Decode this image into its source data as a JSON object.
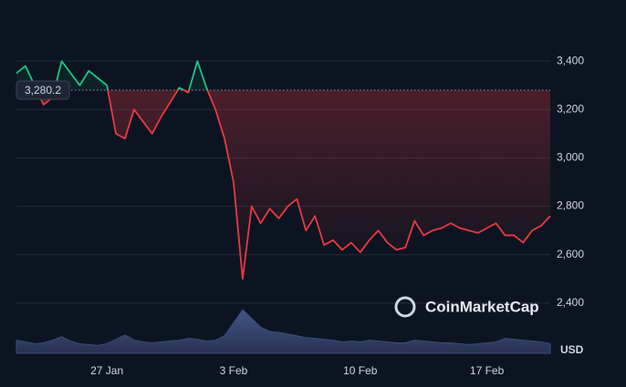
{
  "chart_data": {
    "type": "line",
    "categories": [
      null,
      null,
      null,
      null,
      null,
      null,
      null,
      null,
      null,
      null,
      "27 Jan",
      null,
      null,
      null,
      null,
      null,
      null,
      null,
      null,
      null,
      null,
      null,
      null,
      null,
      "3 Feb",
      null,
      null,
      null,
      null,
      null,
      null,
      null,
      null,
      null,
      null,
      null,
      null,
      null,
      "10 Feb",
      null,
      null,
      null,
      null,
      null,
      null,
      null,
      null,
      null,
      null,
      null,
      null,
      null,
      "17 Feb",
      null,
      null,
      null,
      null,
      null,
      null,
      null
    ],
    "values": [
      3350,
      3380,
      3300,
      3220,
      3250,
      3400,
      3350,
      3300,
      3360,
      3330,
      3300,
      3100,
      3080,
      3200,
      3150,
      3100,
      3170,
      3230,
      3290,
      3270,
      3400,
      3290,
      3200,
      3080,
      2900,
      2500,
      2800,
      2730,
      2790,
      2750,
      2800,
      2830,
      2700,
      2760,
      2640,
      2660,
      2620,
      2650,
      2610,
      2660,
      2700,
      2650,
      2620,
      2630,
      2740,
      2680,
      2700,
      2710,
      2730,
      2710,
      2700,
      2690,
      2710,
      2730,
      2680,
      2680,
      2650,
      2700,
      2720,
      2760
    ],
    "volume": [
      30,
      26,
      22,
      24,
      30,
      38,
      28,
      22,
      20,
      18,
      22,
      32,
      42,
      30,
      26,
      24,
      26,
      28,
      30,
      34,
      32,
      28,
      30,
      40,
      70,
      100,
      80,
      60,
      50,
      48,
      44,
      40,
      36,
      34,
      32,
      30,
      26,
      28,
      26,
      30,
      28,
      26,
      24,
      24,
      30,
      28,
      26,
      24,
      24,
      22,
      20,
      22,
      24,
      26,
      34,
      32,
      30,
      28,
      26,
      22
    ],
    "reference": {
      "value": 3280.2,
      "label": "3,280.2"
    },
    "ylim": [
      2200,
      3600
    ],
    "yticks": [
      {
        "value": 2400,
        "label": "2,400"
      },
      {
        "value": 2600,
        "label": "2,600"
      },
      {
        "value": 2800,
        "label": "2,800"
      },
      {
        "value": 3000,
        "label": "3,000"
      },
      {
        "value": 3200,
        "label": "3,200"
      },
      {
        "value": 3400,
        "label": "3,400"
      }
    ],
    "up_color": "#16c784",
    "down_color": "#ea3943",
    "volume_color": "#3a4a7a",
    "grid": true,
    "unit_label": "USD",
    "watermark": "CoinMarketCap"
  }
}
